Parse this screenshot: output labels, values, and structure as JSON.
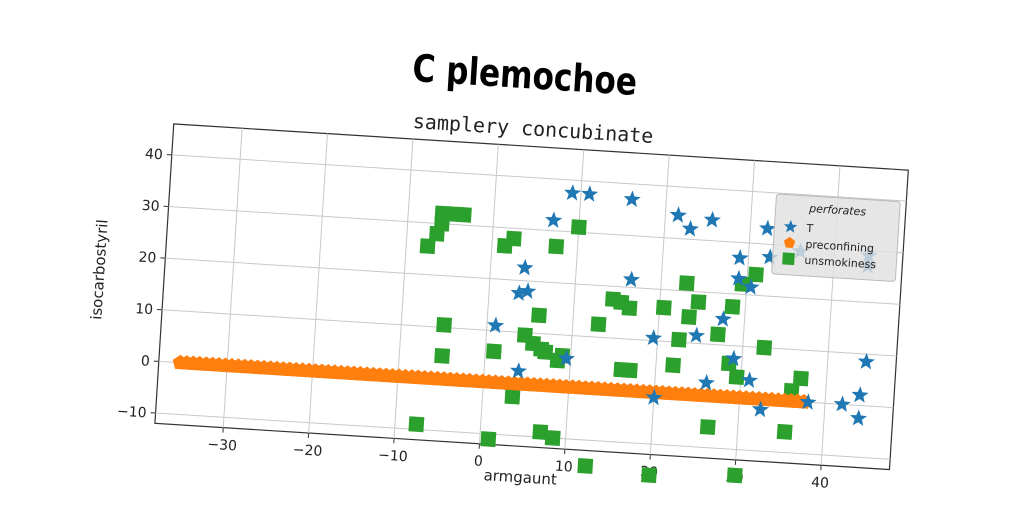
{
  "chart_data": {
    "type": "scatter",
    "title": "C plemochoe",
    "subtitle": "samplery concubinate",
    "xlabel": "armgaunt",
    "ylabel": "isocarbostyril",
    "xlim": [
      -38,
      48
    ],
    "ylim": [
      -12,
      46
    ],
    "xticks": [
      -30,
      -20,
      -10,
      0,
      10,
      20,
      30,
      40
    ],
    "yticks": [
      -10,
      0,
      10,
      20,
      30,
      40
    ],
    "xtick_labels": [
      "−30",
      "−20",
      "−10",
      "0",
      "10",
      "20",
      "30",
      "40"
    ],
    "ytick_labels": [
      "−10",
      "0",
      "10",
      "20",
      "30",
      "40"
    ],
    "grid": true,
    "legend": {
      "title": "perforates",
      "placement": "top-right"
    },
    "series": [
      {
        "name": "T",
        "marker": "star",
        "color": "#1f77b4",
        "points": [
          [
            9,
            37.5
          ],
          [
            11,
            37.5
          ],
          [
            16,
            37
          ],
          [
            21.5,
            34.5
          ],
          [
            23,
            32
          ],
          [
            25.5,
            34
          ],
          [
            32,
            33
          ],
          [
            36,
            29
          ],
          [
            44,
            29
          ],
          [
            44,
            27
          ],
          [
            7,
            32
          ],
          [
            29,
            27
          ],
          [
            32.5,
            27.5
          ],
          [
            29,
            23
          ],
          [
            4,
            22.5
          ],
          [
            16.5,
            21.5
          ],
          [
            30.5,
            21.5
          ],
          [
            3.5,
            17.5
          ],
          [
            4.5,
            18
          ],
          [
            27.5,
            15
          ],
          [
            24.5,
            11.5
          ],
          [
            1,
            11
          ],
          [
            19.5,
            10.5
          ],
          [
            9.5,
            5.5
          ],
          [
            29,
            7.5
          ],
          [
            44.5,
            8.5
          ],
          [
            4,
            2.5
          ],
          [
            26,
            2.5
          ],
          [
            44,
            2
          ],
          [
            38,
            0
          ],
          [
            42,
            0
          ],
          [
            20,
            -1
          ],
          [
            32.5,
            -2
          ],
          [
            44,
            -2.5
          ],
          [
            31,
            3.5
          ]
        ]
      },
      {
        "name": "preconfining",
        "marker": "pentagon",
        "color": "#ff7f0e",
        "x_range": [
          -35.5,
          37.5
        ],
        "count": 98,
        "y": 0
      },
      {
        "name": "unsmokiness",
        "marker": "square",
        "color": "#2ca02c",
        "points": [
          [
            -6,
            32
          ],
          [
            -4.5,
            32
          ],
          [
            -3.5,
            32
          ],
          [
            -6,
            30
          ],
          [
            -6.5,
            28
          ],
          [
            10,
            31
          ],
          [
            2.5,
            28
          ],
          [
            1.5,
            26.5
          ],
          [
            7.5,
            27
          ],
          [
            -7.5,
            25.5
          ],
          [
            20.5,
            16.5
          ],
          [
            23,
            21.5
          ],
          [
            31,
            24
          ],
          [
            29.5,
            22
          ],
          [
            14.5,
            17.5
          ],
          [
            15.5,
            17
          ],
          [
            16.5,
            16
          ],
          [
            24.5,
            18
          ],
          [
            23.5,
            15
          ],
          [
            28.5,
            17.5
          ],
          [
            6,
            13.5
          ],
          [
            13,
            12.5
          ],
          [
            27,
            12
          ],
          [
            -5,
            10.5
          ],
          [
            4.5,
            9.5
          ],
          [
            5.5,
            8
          ],
          [
            6.5,
            7
          ],
          [
            7,
            6.5
          ],
          [
            9,
            6
          ],
          [
            22.5,
            10.5
          ],
          [
            32.5,
            10
          ],
          [
            28.5,
            6.5
          ],
          [
            1,
            6
          ],
          [
            -5,
            4.5
          ],
          [
            8.5,
            5
          ],
          [
            22,
            5.5
          ],
          [
            16,
            4
          ],
          [
            17,
            4
          ],
          [
            29.5,
            4
          ],
          [
            37,
            4.5
          ],
          [
            36,
            2
          ],
          [
            3.5,
            -2.5
          ],
          [
            26.5,
            -6
          ],
          [
            35.5,
            -6
          ],
          [
            -7.5,
            -9
          ],
          [
            7,
            -9
          ],
          [
            8.5,
            -10
          ],
          [
            1,
            -11
          ],
          [
            12.5,
            -15
          ],
          [
            20,
            -16
          ],
          [
            30,
            -15
          ]
        ]
      }
    ]
  }
}
